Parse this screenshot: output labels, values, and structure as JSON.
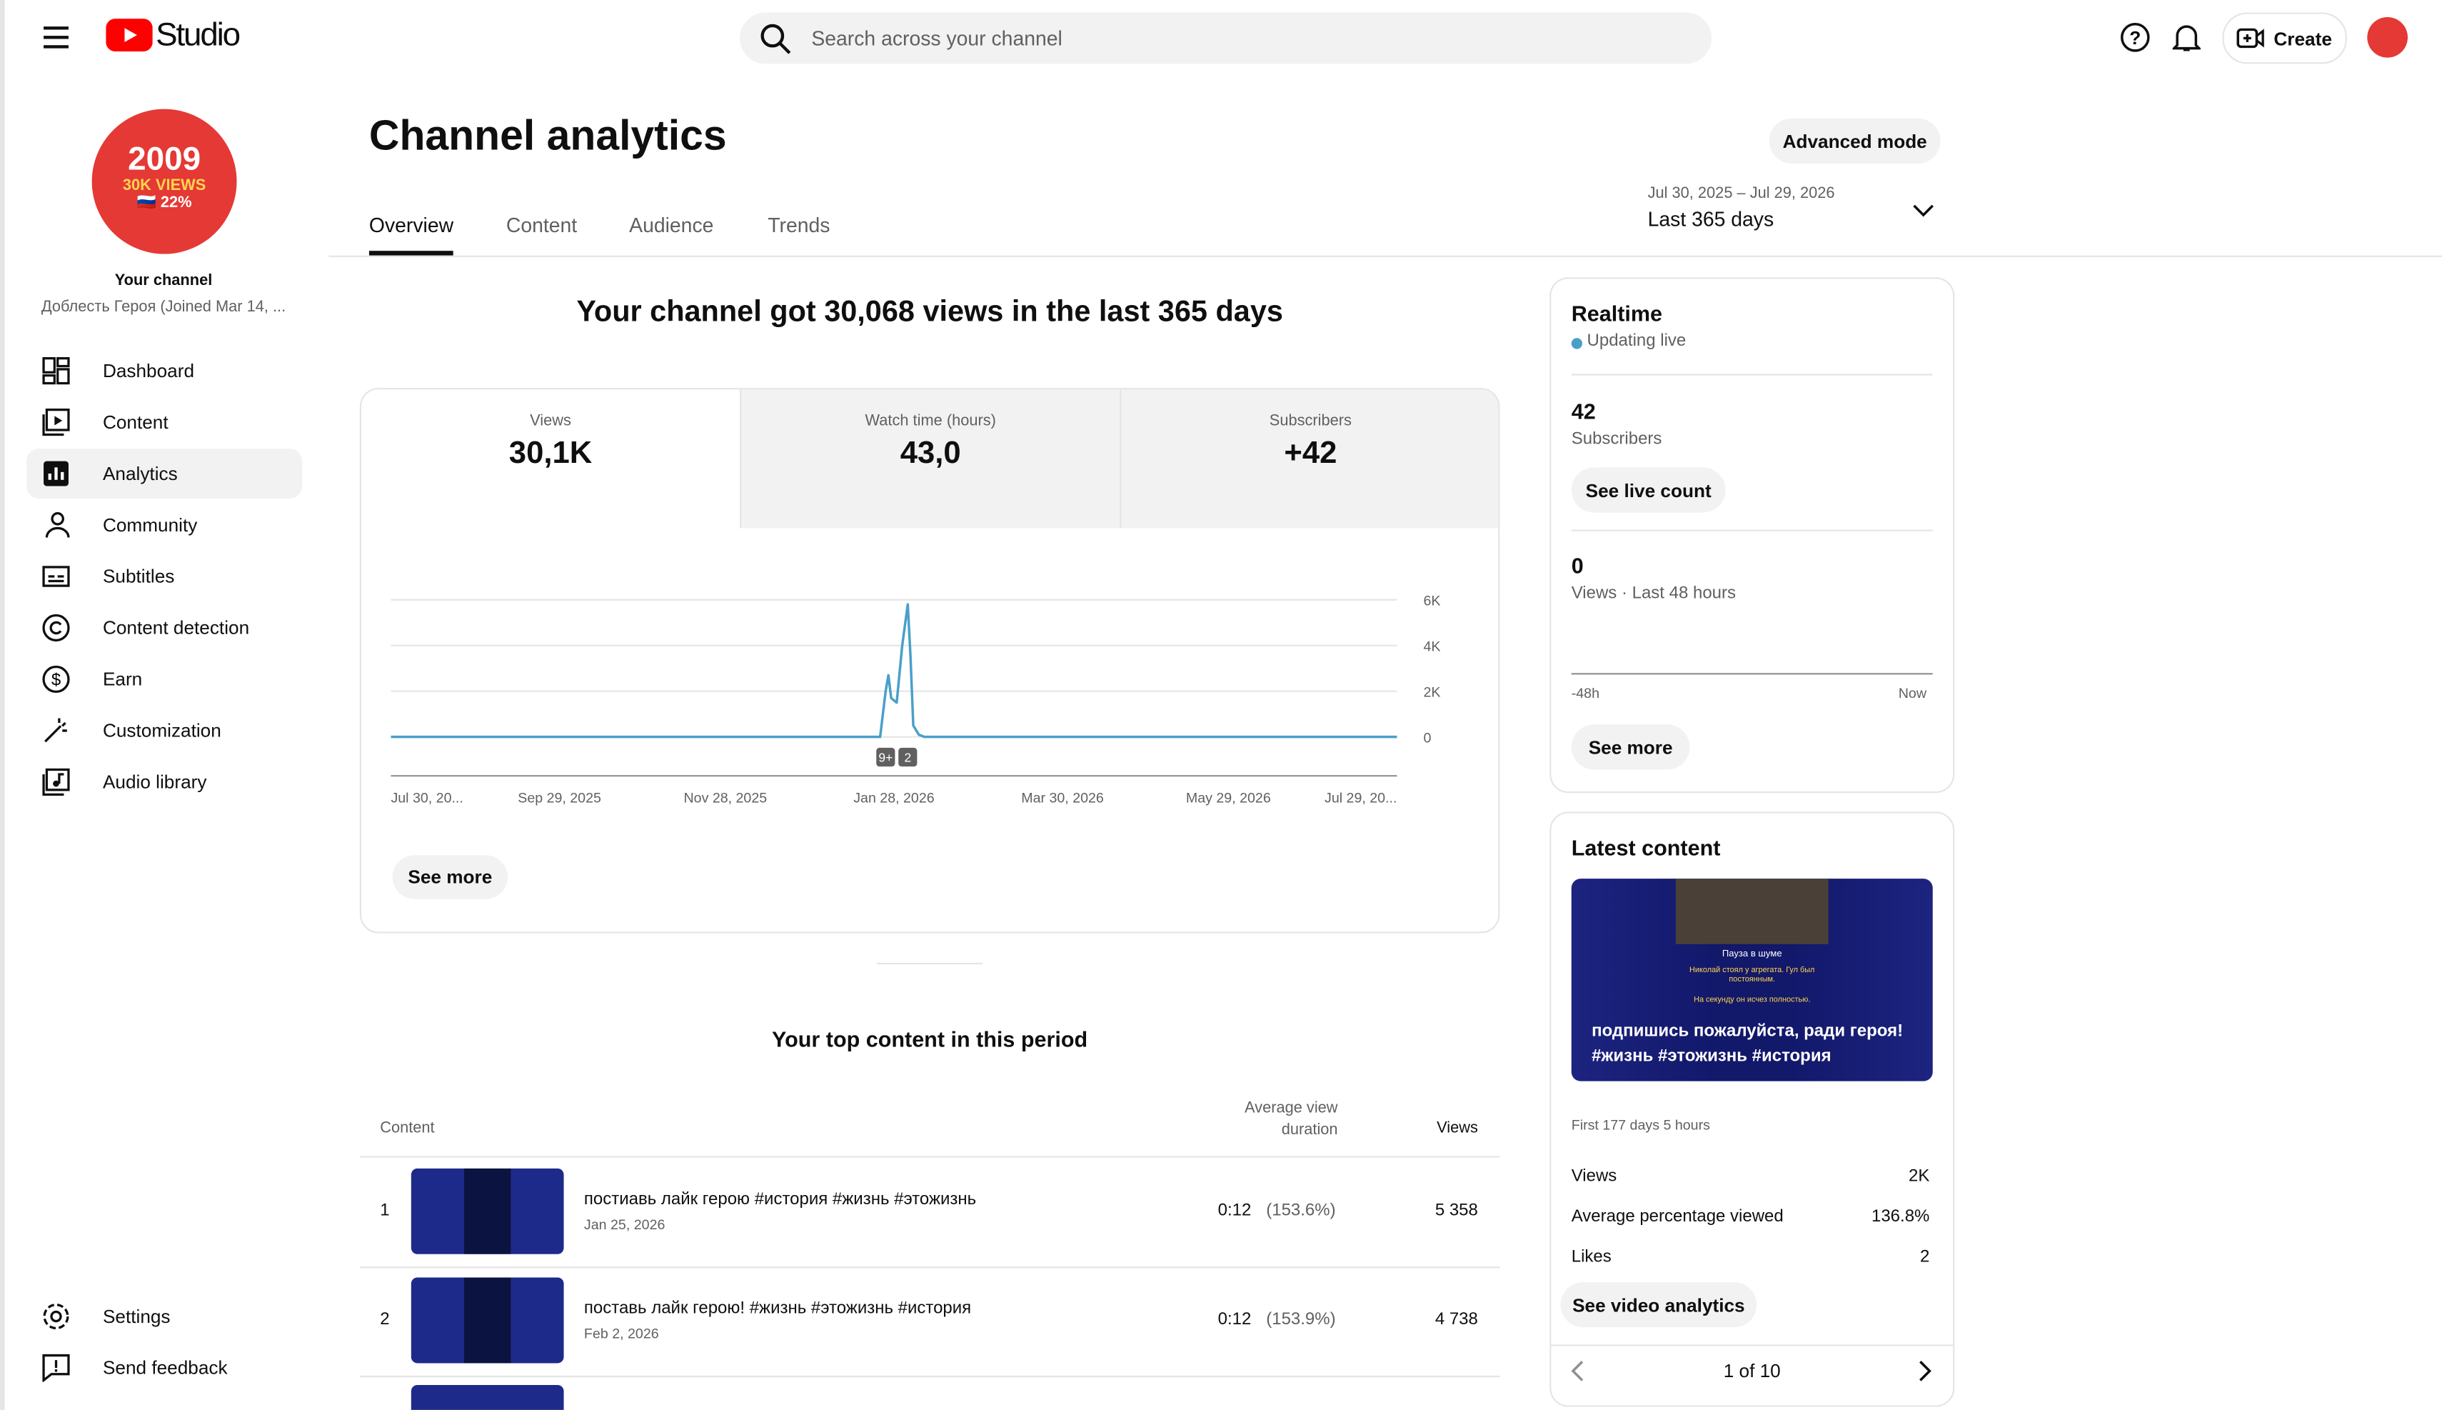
{
  "header": {
    "logo": "Studio",
    "search_placeholder": "Search across your channel",
    "create": "Create"
  },
  "sidebar": {
    "avatar_lines": [
      "2009",
      "30K VIEWS",
      "🇷🇺 22%"
    ],
    "channel_label": "Your channel",
    "channel_name": "Доблесть Героя (Joined Mar 14, ...",
    "nav": [
      "Dashboard",
      "Content",
      "Analytics",
      "Community",
      "Subtitles",
      "Content detection",
      "Earn",
      "Customization",
      "Audio library"
    ],
    "footer_nav": [
      "Settings",
      "Send feedback"
    ]
  },
  "page": {
    "title": "Channel analytics",
    "advanced_mode": "Advanced mode",
    "tabs": [
      "Overview",
      "Content",
      "Audience",
      "Trends"
    ],
    "date_range": "Jul 30, 2025 – Jul 29, 2026",
    "period": "Last 365 days",
    "headline": "Your channel got 30,068 views in the last 365 days",
    "metrics": [
      {
        "label": "Views",
        "value": "30,1K"
      },
      {
        "label": "Watch time (hours)",
        "value": "43,0"
      },
      {
        "label": "Subscribers",
        "value": "+42"
      }
    ],
    "see_more": "See more"
  },
  "chart_data": {
    "type": "line",
    "color": "#4a9fc9",
    "x": [
      "Jul 30, 2025",
      "Jan 23, 2026",
      "Jan 25, 2026",
      "Jan 26, 2026",
      "Jan 27, 2026",
      "Jan 29, 2026",
      "Jan 31, 2026",
      "Feb 2, 2026",
      "Feb 3, 2026",
      "Feb 4, 2026",
      "Feb 6, 2026",
      "Feb 8, 2026",
      "Jul 29, 2026"
    ],
    "values": [
      0,
      0,
      2000,
      2700,
      1700,
      1500,
      4000,
      5800,
      3500,
      500,
      100,
      0,
      0
    ],
    "xlim": [
      "Jul 30, 2025",
      "Jul 29, 2026"
    ],
    "xticks": [
      {
        "value": "Jul 30, 2025",
        "label": "Jul 30, 20..."
      },
      "Sep 29, 2025",
      "Nov 28, 2025",
      "Jan 28, 2026",
      "Mar 30, 2026",
      "May 29, 2026",
      {
        "value": "Jul 29, 2026",
        "label": "Jul 29, 20..."
      }
    ],
    "ylim": [
      0,
      6000
    ],
    "yticks": [
      0,
      {
        "value": 2000,
        "label": "2K"
      },
      {
        "value": 4000,
        "label": "4K"
      },
      {
        "value": 6000,
        "label": "6K"
      }
    ],
    "grid": true,
    "annotations": [
      {
        "x": "Jan 25, 2026",
        "text": "9+"
      },
      {
        "x": "Feb 2, 2026",
        "text": "2"
      }
    ]
  },
  "top_content": {
    "title": "Your top content in this period",
    "columns": [
      "Content",
      "Average view duration",
      "Views"
    ],
    "rows": [
      {
        "rank": "1",
        "title": "постиавь лайк герою #история #жизнь #этожизнь",
        "date": "Jan 25, 2026",
        "duration": "0:12",
        "percent": "(153.6%)",
        "views": "5 358"
      },
      {
        "rank": "2",
        "title": "поставь лайк герою! #жизнь #этожизнь #история",
        "date": "Feb 2, 2026",
        "duration": "0:12",
        "percent": "(153.9%)",
        "views": "4 738"
      }
    ]
  },
  "realtime": {
    "title": "Realtime",
    "status": "Updating live",
    "subs_value": "42",
    "subs_label": "Subscribers",
    "live_button": "See live count",
    "views_value": "0",
    "views_label": "Views · Last 48 hours",
    "axis_start": "-48h",
    "axis_end": "Now",
    "see_more": "See more"
  },
  "latest": {
    "title": "Latest content",
    "thumb_heading": "Пауза в шуме",
    "thumb_text": "Николай стоял у агрегата. Гул был постоянным.",
    "thumb_text2": "На секунду он исчез полностью.",
    "caption": "подпишись пожалуйста, ради героя! #жизнь #этожизнь #история",
    "period": "First 177 days 5 hours",
    "stats": [
      {
        "label": "Views",
        "value": "2K"
      },
      {
        "label": "Average percentage viewed",
        "value": "136.8%"
      },
      {
        "label": "Likes",
        "value": "2"
      }
    ],
    "button": "See video analytics",
    "pager": "1 of 10"
  }
}
